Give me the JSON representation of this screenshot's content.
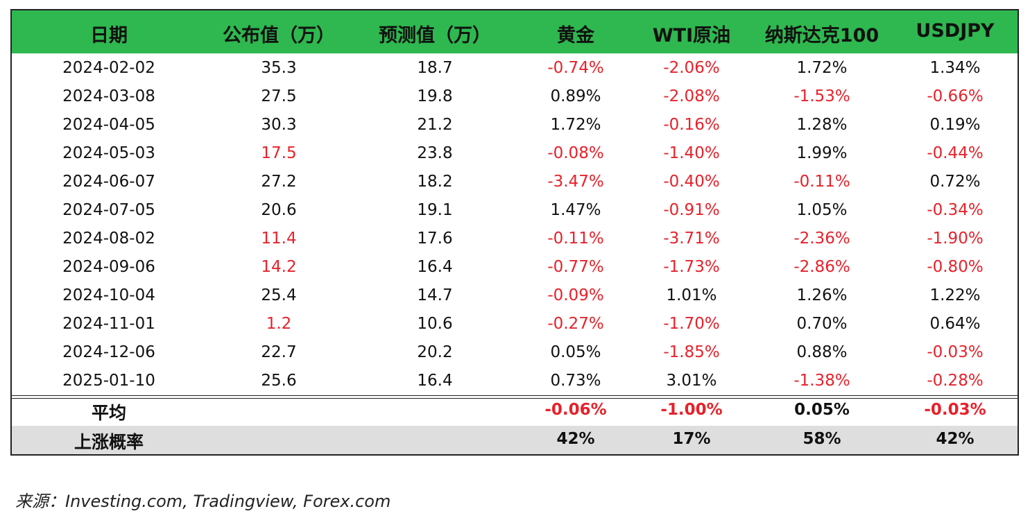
{
  "table": {
    "columns": [
      "日期",
      "公布值（万）",
      "预测值（万）",
      "黄金",
      "WTI原油",
      "纳斯达克100",
      "USDJPY"
    ],
    "rows": [
      [
        "2024-02-02",
        "35.3",
        "18.7",
        "-0.74%",
        "-2.06%",
        "1.72%",
        "1.34%"
      ],
      [
        "2024-03-08",
        "27.5",
        "19.8",
        "0.89%",
        "-2.08%",
        "-1.53%",
        "-0.66%"
      ],
      [
        "2024-04-05",
        "30.3",
        "21.2",
        "1.72%",
        "-0.16%",
        "1.28%",
        "0.19%"
      ],
      [
        "2024-05-03",
        "17.5",
        "23.8",
        "-0.08%",
        "-1.40%",
        "1.99%",
        "-0.44%"
      ],
      [
        "2024-06-07",
        "27.2",
        "18.2",
        "-3.47%",
        "-0.40%",
        "-0.11%",
        "0.72%"
      ],
      [
        "2024-07-05",
        "20.6",
        "19.1",
        "1.47%",
        "-0.91%",
        "1.05%",
        "-0.34%"
      ],
      [
        "2024-08-02",
        "11.4",
        "17.6",
        "-0.11%",
        "-3.71%",
        "-2.36%",
        "-1.90%"
      ],
      [
        "2024-09-06",
        "14.2",
        "16.4",
        "-0.77%",
        "-1.73%",
        "-2.86%",
        "-0.80%"
      ],
      [
        "2024-10-04",
        "25.4",
        "14.7",
        "-0.09%",
        "1.01%",
        "1.26%",
        "1.22%"
      ],
      [
        "2024-11-01",
        "1.2",
        "10.6",
        "-0.27%",
        "-1.70%",
        "0.70%",
        "0.64%"
      ],
      [
        "2024-12-06",
        "22.7",
        "20.2",
        "0.05%",
        "-1.85%",
        "0.88%",
        "-0.03%"
      ],
      [
        "2025-01-10",
        "25.6",
        "16.4",
        "0.73%",
        "3.01%",
        "-1.38%",
        "-0.28%"
      ]
    ]
  },
  "summary": [
    {
      "label": "平均",
      "values": [
        "-0.06%",
        "-1.00%",
        "0.05%",
        "-0.03%"
      ]
    },
    {
      "label": "上涨概率",
      "values": [
        "42%",
        "17%",
        "58%",
        "42%"
      ]
    }
  ],
  "source": "来源：Investing.com, Tradingview, Forex.com"
}
